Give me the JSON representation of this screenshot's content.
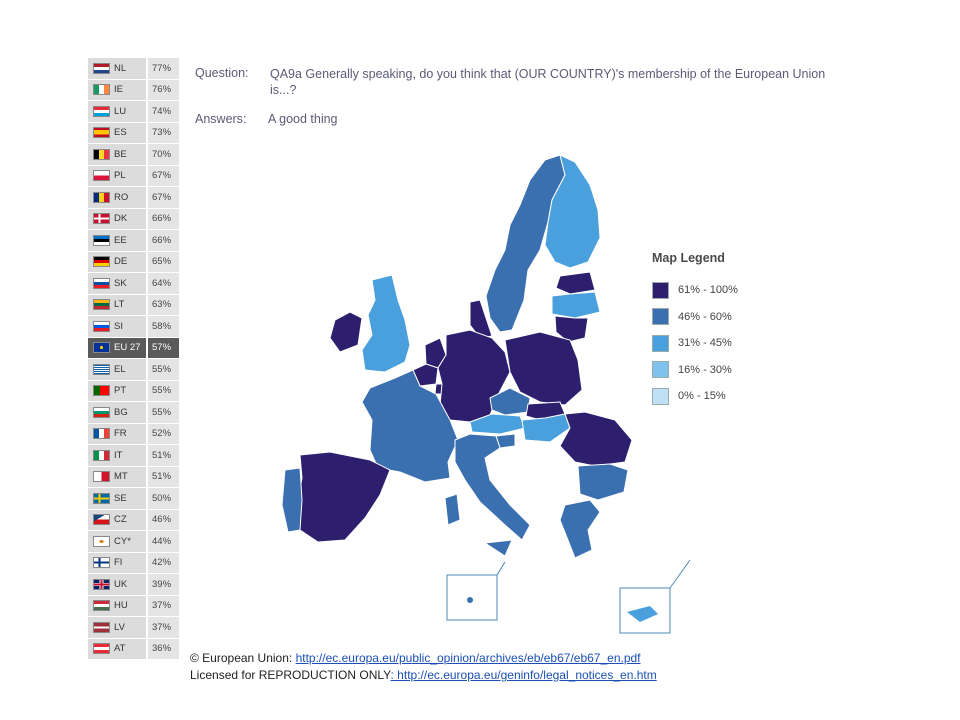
{
  "question": {
    "label": "Question:",
    "text": "QA9a Generally speaking, do you think that (OUR COUNTRY)'s membership of the European Union is...?",
    "answers_label": "Answers:",
    "answer": "A good thing"
  },
  "countries": [
    {
      "code": "NL",
      "value": "77%",
      "flag": "nl"
    },
    {
      "code": "IE",
      "value": "76%",
      "flag": "ie"
    },
    {
      "code": "LU",
      "value": "74%",
      "flag": "lu"
    },
    {
      "code": "ES",
      "value": "73%",
      "flag": "es"
    },
    {
      "code": "BE",
      "value": "70%",
      "flag": "be"
    },
    {
      "code": "PL",
      "value": "67%",
      "flag": "pl"
    },
    {
      "code": "RO",
      "value": "67%",
      "flag": "ro"
    },
    {
      "code": "DK",
      "value": "66%",
      "flag": "dk"
    },
    {
      "code": "EE",
      "value": "66%",
      "flag": "ee"
    },
    {
      "code": "DE",
      "value": "65%",
      "flag": "de"
    },
    {
      "code": "SK",
      "value": "64%",
      "flag": "sk"
    },
    {
      "code": "LT",
      "value": "63%",
      "flag": "lt"
    },
    {
      "code": "SI",
      "value": "58%",
      "flag": "si"
    },
    {
      "code": "EU 27",
      "value": "57%",
      "flag": "eu",
      "highlight": true
    },
    {
      "code": "EL",
      "value": "55%",
      "flag": "el"
    },
    {
      "code": "PT",
      "value": "55%",
      "flag": "pt"
    },
    {
      "code": "BG",
      "value": "55%",
      "flag": "bg"
    },
    {
      "code": "FR",
      "value": "52%",
      "flag": "fr"
    },
    {
      "code": "IT",
      "value": "51%",
      "flag": "it"
    },
    {
      "code": "MT",
      "value": "51%",
      "flag": "mt"
    },
    {
      "code": "SE",
      "value": "50%",
      "flag": "se"
    },
    {
      "code": "CZ",
      "value": "46%",
      "flag": "cz"
    },
    {
      "code": "CY*",
      "value": "44%",
      "flag": "cy"
    },
    {
      "code": "FI",
      "value": "42%",
      "flag": "fi"
    },
    {
      "code": "UK",
      "value": "39%",
      "flag": "uk"
    },
    {
      "code": "HU",
      "value": "37%",
      "flag": "hu"
    },
    {
      "code": "LV",
      "value": "37%",
      "flag": "lv"
    },
    {
      "code": "AT",
      "value": "36%",
      "flag": "at"
    }
  ],
  "legend": {
    "title": "Map Legend",
    "items": [
      {
        "label": "61% - 100%",
        "color": "#2d1f6e"
      },
      {
        "label": "46% - 60%",
        "color": "#3a6fb0"
      },
      {
        "label": "31% - 45%",
        "color": "#4aa0dc"
      },
      {
        "label": "16% - 30%",
        "color": "#7ec3ec"
      },
      {
        "label": "0% - 15%",
        "color": "#bfe0f6"
      }
    ]
  },
  "footer": {
    "line1_prefix": "© European Union: ",
    "line1_link": "http://ec.europa.eu/public_opinion/archives/eb/eb67/eb67_en.pdf",
    "line2_prefix": "Licensed for REPRODUCTION ONLY",
    "line2_link": ": http://ec.europa.eu/geninfo/legal_notices_en.htm"
  }
}
